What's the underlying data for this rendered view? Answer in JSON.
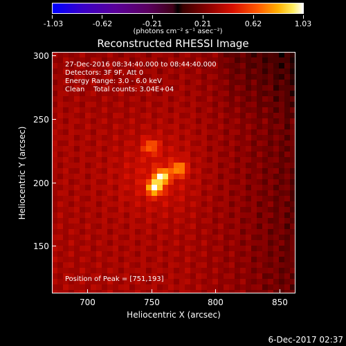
{
  "colorbar": {
    "ticks": [
      "-1.03",
      "-0.62",
      "-0.21",
      "0.21",
      "0.62",
      "1.03"
    ],
    "units": "(photons cm⁻² s⁻¹ asec⁻²)",
    "range": [
      -1.03,
      1.03
    ]
  },
  "title": "Reconstructed RHESSI Image",
  "annotations": {
    "time_range": "27-Dec-2016 08:34:40.000 to 08:44:40.000",
    "detectors": "Detectors: 3F 9F, Att 0",
    "energy": "Energy Range: 3.0 - 6.0 keV",
    "clean": "Clean    Total counts: 3.04E+04",
    "peak": "Position of Peak = [751,193]"
  },
  "axes": {
    "xlabel": "Heliocentric X (arcsec)",
    "ylabel": "Heliocentric Y (arcsec)",
    "xticks": [
      "700",
      "750",
      "800",
      "850"
    ],
    "yticks": [
      "150",
      "200",
      "250",
      "300"
    ],
    "xlim": [
      670,
      862
    ],
    "ylim": [
      110,
      304
    ]
  },
  "image_data": {
    "peak_position": [
      751,
      193
    ],
    "sources": [
      {
        "x": 751,
        "y": 195,
        "intensity": 1.03
      },
      {
        "x": 757,
        "y": 204,
        "intensity": 0.85
      },
      {
        "x": 770,
        "y": 210,
        "intensity": 0.6
      },
      {
        "x": 748,
        "y": 228,
        "intensity": 0.45
      }
    ]
  },
  "date_stamp": "6-Dec-2017 02:37",
  "colors": {
    "background": "#000000",
    "foreground": "#ffffff"
  }
}
